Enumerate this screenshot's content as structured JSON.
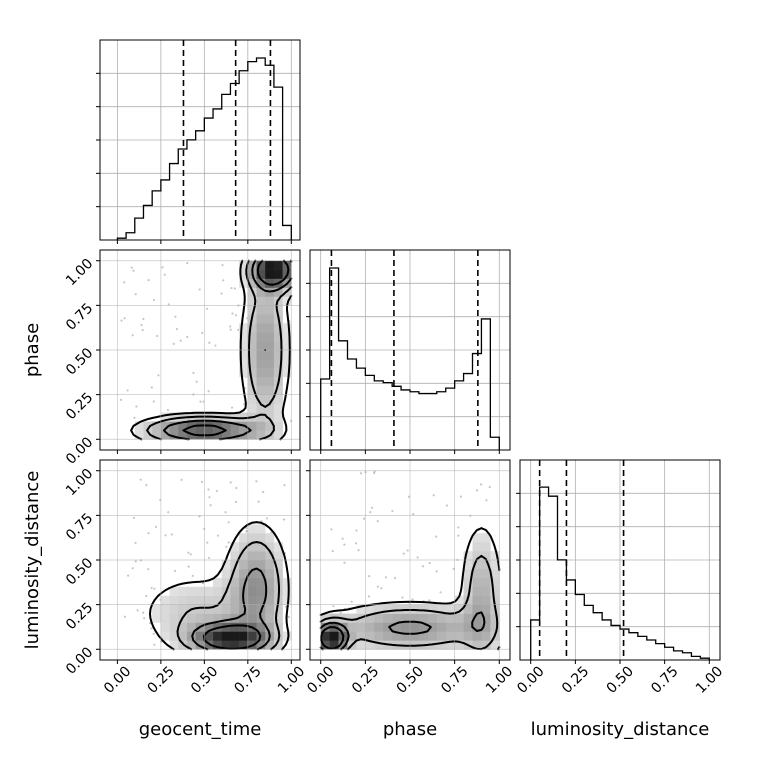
{
  "chart_data": {
    "type": "corner",
    "parameters": [
      "geocent_time",
      "phase",
      "luminosity_distance"
    ],
    "ticks": [
      0.0,
      0.25,
      0.5,
      0.75,
      1.0
    ],
    "tick_labels": [
      "0.00",
      "0.25",
      "0.50",
      "0.75",
      "1.00"
    ],
    "ranges": [
      [
        -0.1,
        1.05
      ],
      [
        -0.06,
        1.06
      ],
      [
        -0.06,
        1.06
      ]
    ],
    "grid": true,
    "colors": {
      "line": "#000000",
      "grid": "#b0b0b0",
      "scatter": "#a0a0a0"
    },
    "histograms": {
      "geocent_time": {
        "bin_edges": [
          -0.0,
          0.05,
          0.1,
          0.15,
          0.2,
          0.25,
          0.3,
          0.35,
          0.4,
          0.45,
          0.5,
          0.55,
          0.6,
          0.65,
          0.7,
          0.75,
          0.8,
          0.85,
          0.9,
          0.95,
          1.0
        ],
        "counts": [
          0.01,
          0.04,
          0.12,
          0.19,
          0.27,
          0.33,
          0.42,
          0.5,
          0.55,
          0.6,
          0.67,
          0.72,
          0.8,
          0.86,
          0.93,
          0.98,
          1.0,
          0.96,
          0.84,
          0.08
        ],
        "quantiles": [
          0.38,
          0.68,
          0.88
        ]
      },
      "phase": {
        "bin_edges": [
          -0.0,
          0.05,
          0.1,
          0.15,
          0.2,
          0.25,
          0.3,
          0.35,
          0.4,
          0.45,
          0.5,
          0.55,
          0.6,
          0.65,
          0.7,
          0.75,
          0.8,
          0.85,
          0.9,
          0.95,
          1.0
        ],
        "counts": [
          0.39,
          1.0,
          0.6,
          0.5,
          0.45,
          0.41,
          0.38,
          0.37,
          0.35,
          0.33,
          0.32,
          0.31,
          0.31,
          0.32,
          0.34,
          0.38,
          0.42,
          0.53,
          0.72,
          0.07
        ],
        "quantiles": [
          0.06,
          0.41,
          0.88
        ]
      },
      "luminosity_distance": {
        "bin_edges": [
          -0.0,
          0.05,
          0.1,
          0.15,
          0.2,
          0.25,
          0.3,
          0.35,
          0.4,
          0.45,
          0.5,
          0.55,
          0.6,
          0.65,
          0.7,
          0.75,
          0.8,
          0.85,
          0.9,
          0.95,
          1.0
        ],
        "counts": [
          0.22,
          0.95,
          0.9,
          0.55,
          0.44,
          0.36,
          0.3,
          0.26,
          0.22,
          0.19,
          0.17,
          0.15,
          0.13,
          0.11,
          0.09,
          0.07,
          0.05,
          0.04,
          0.02,
          0.01
        ],
        "quantiles": [
          0.05,
          0.2,
          0.52
        ]
      }
    },
    "density_2d": {
      "geocent_time-phase": {
        "description_x": "geocent_time",
        "description_y": "phase",
        "high_density_regions": [
          [
            0.88,
            0.96
          ],
          [
            0.55,
            0.05
          ],
          [
            0.3,
            0.05
          ]
        ],
        "contour_levels": 4
      },
      "geocent_time-luminosity_distance": {
        "description_x": "geocent_time",
        "description_y": "luminosity_distance",
        "high_density_regions": [
          [
            0.7,
            0.05
          ],
          [
            0.5,
            0.08
          ]
        ],
        "contour_levels": 4
      },
      "phase-luminosity_distance": {
        "description_x": "phase",
        "description_y": "luminosity_distance",
        "high_density_regions": [
          [
            0.04,
            0.05
          ],
          [
            0.2,
            0.1
          ]
        ],
        "contour_levels": 4
      }
    }
  }
}
